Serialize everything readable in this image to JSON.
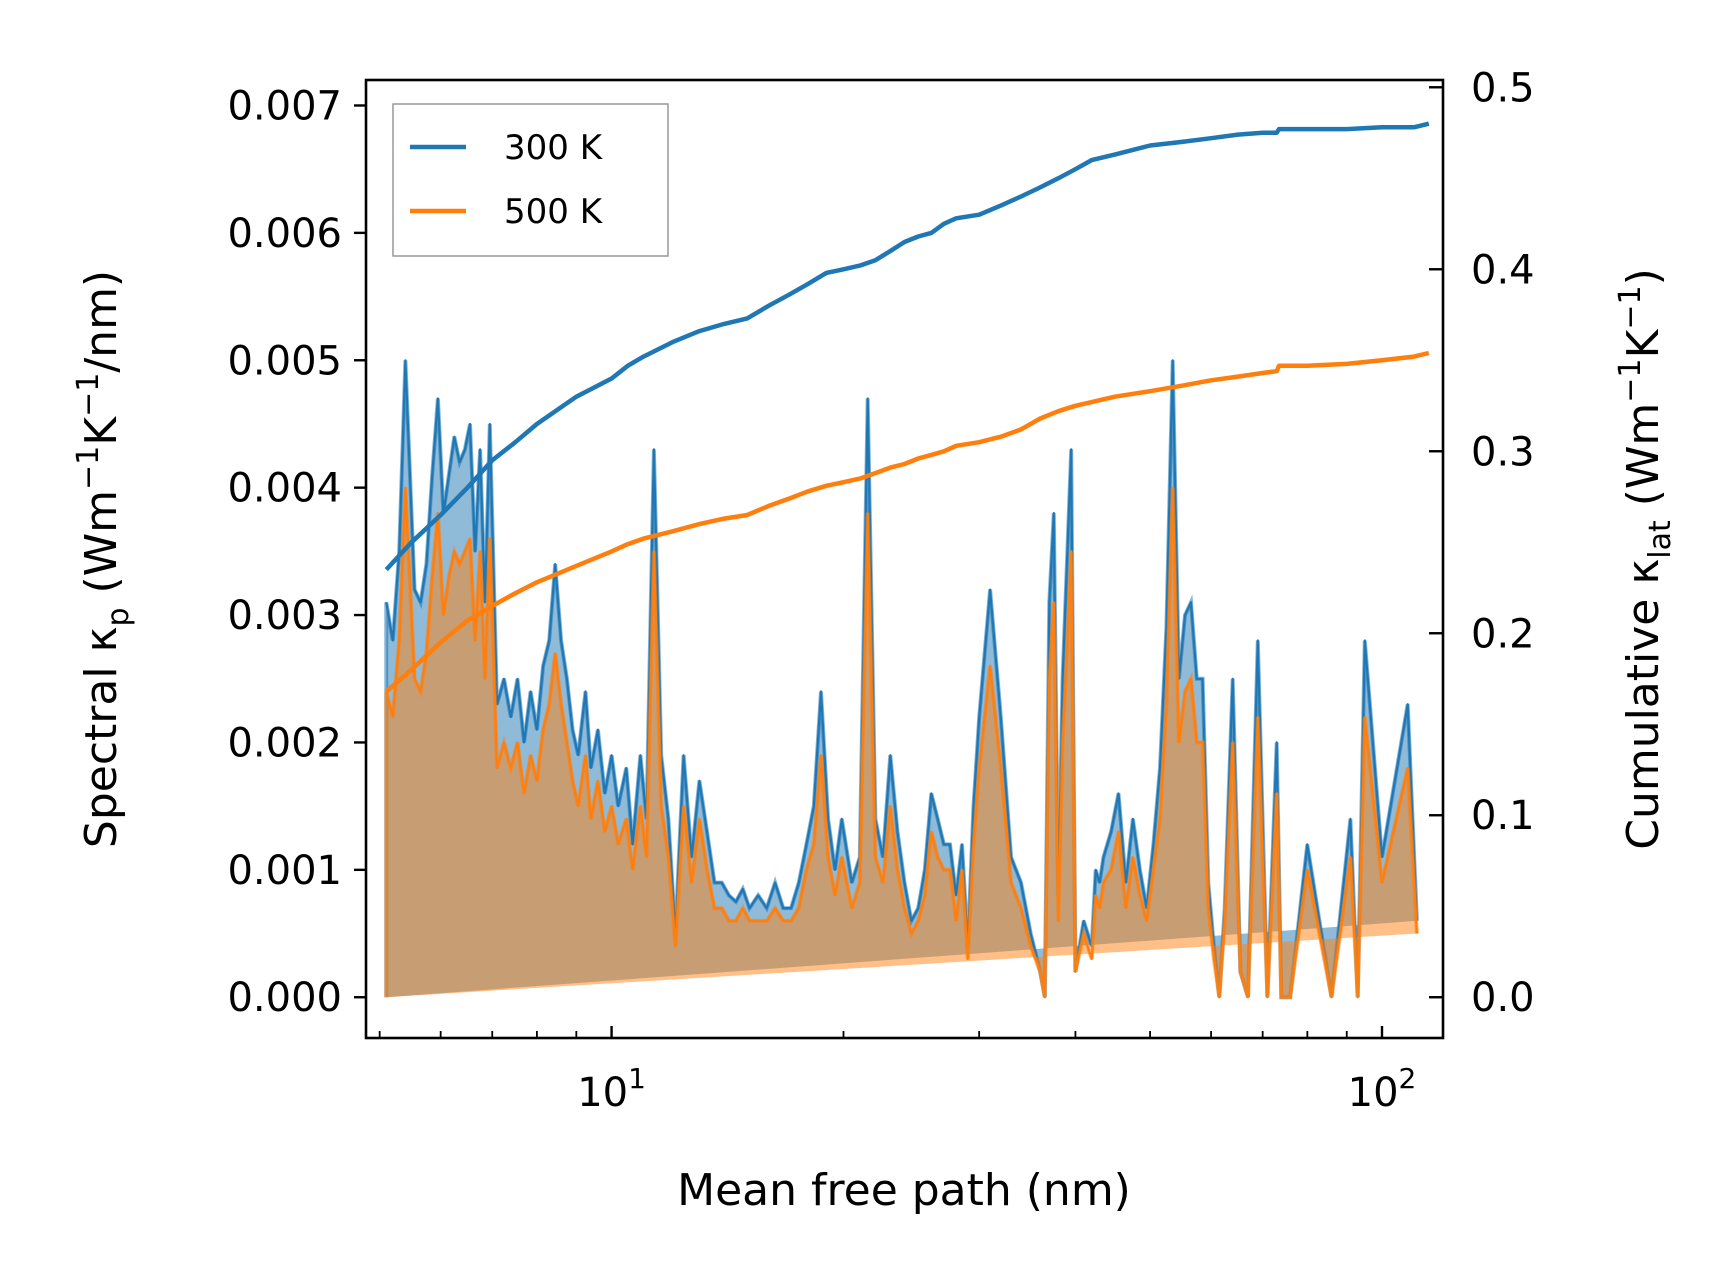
{
  "chart_data": {
    "type": "line",
    "title": "",
    "xlabel": "Mean free path (nm)",
    "ylabel_left": "Spectral κ_p (Wm⁻¹K⁻¹/nm)",
    "ylabel_right": "Cumulative κ_lat (Wm⁻¹K⁻¹)",
    "xscale": "log",
    "xlim": [
      4.8,
      120
    ],
    "ylim_left": [
      -0.00032,
      0.0072
    ],
    "ylim_right": [
      -0.0224,
      0.504
    ],
    "x_tick_labels": [
      {
        "value": 10,
        "base": "10",
        "exp": "1"
      },
      {
        "value": 100,
        "base": "10",
        "exp": "2"
      }
    ],
    "y_left_ticks": [
      "0.000",
      "0.001",
      "0.002",
      "0.003",
      "0.004",
      "0.005",
      "0.006",
      "0.007"
    ],
    "y_right_ticks": [
      "0.0",
      "0.1",
      "0.2",
      "0.3",
      "0.4",
      "0.5"
    ],
    "legend": {
      "position": "top-left",
      "entries": [
        {
          "label": "300 K",
          "color": "#1f77b4"
        },
        {
          "label": "500 K",
          "color": "#ff7f0e"
        }
      ]
    },
    "spectral_x": [
      5.1,
      5.2,
      5.3,
      5.4,
      5.55,
      5.65,
      5.75,
      5.85,
      5.95,
      6.05,
      6.15,
      6.25,
      6.35,
      6.45,
      6.55,
      6.65,
      6.75,
      6.85,
      6.95,
      7.1,
      7.25,
      7.4,
      7.55,
      7.7,
      7.85,
      8.0,
      8.15,
      8.3,
      8.45,
      8.6,
      8.75,
      8.9,
      9.05,
      9.25,
      9.4,
      9.6,
      9.8,
      10.0,
      10.2,
      10.45,
      10.65,
      10.9,
      11.1,
      11.35,
      11.6,
      11.85,
      12.1,
      12.4,
      12.7,
      13.0,
      13.3,
      13.6,
      13.9,
      14.2,
      14.5,
      14.8,
      15.1,
      15.5,
      15.9,
      16.3,
      16.7,
      17.1,
      17.5,
      17.9,
      18.3,
      18.7,
      19.1,
      19.5,
      19.9,
      20.5,
      21.0,
      21.5,
      22.0,
      22.5,
      23.0,
      23.5,
      24.0,
      24.5,
      25.0,
      25.5,
      26.0,
      26.5,
      27.0,
      27.5,
      28.0,
      28.5,
      29.0,
      29.5,
      30.0,
      31.0,
      32.0,
      33.0,
      34.0,
      35.0,
      36.0,
      36.5,
      37.0,
      37.5,
      38.0,
      38.5,
      39.0,
      39.5,
      40.0,
      41.0,
      42.0,
      42.5,
      43.0,
      43.5,
      44.5,
      45.5,
      46.5,
      47.5,
      48.5,
      49.5,
      50.5,
      51.5,
      52.5,
      53.5,
      54.5,
      55.5,
      56.5,
      57.5,
      58.5,
      59.5,
      60.5,
      61.5,
      62.5,
      64.0,
      65.5,
      67.0,
      69.0,
      71.0,
      73.0,
      73.5,
      74.0,
      76.0,
      80.0,
      86.0,
      91.0,
      93.0,
      95.0,
      100.0,
      108.0,
      111.0,
      113.0,
      115.0
    ],
    "series": [
      {
        "name": "300 K",
        "color": "#1f77b4",
        "spectral": [
          0.0031,
          0.0028,
          0.0035,
          0.005,
          0.0032,
          0.0031,
          0.0034,
          0.0041,
          0.0047,
          0.0038,
          0.0041,
          0.0044,
          0.0042,
          0.0043,
          0.0045,
          0.0035,
          0.0043,
          0.0031,
          0.0045,
          0.0023,
          0.0025,
          0.0022,
          0.0025,
          0.002,
          0.0024,
          0.0021,
          0.0026,
          0.0028,
          0.0034,
          0.0028,
          0.0025,
          0.0021,
          0.0019,
          0.0024,
          0.0018,
          0.0021,
          0.0016,
          0.0019,
          0.0015,
          0.0018,
          0.0012,
          0.0019,
          0.0014,
          0.0043,
          0.0019,
          0.0014,
          0.0005,
          0.0019,
          0.0011,
          0.0017,
          0.0013,
          0.0009,
          0.0009,
          0.0008,
          0.00075,
          0.00085,
          0.0007,
          0.0008,
          0.0007,
          0.0009,
          0.0007,
          0.0007,
          0.0009,
          0.0012,
          0.0015,
          0.0024,
          0.0014,
          0.001,
          0.0014,
          0.0009,
          0.0011,
          0.0047,
          0.0014,
          0.0011,
          0.0019,
          0.0013,
          0.0009,
          0.0006,
          0.0007,
          0.001,
          0.0016,
          0.0014,
          0.0012,
          0.0012,
          0.0008,
          0.0012,
          0.0004,
          0.0015,
          0.0022,
          0.0032,
          0.0022,
          0.0011,
          0.0009,
          0.0005,
          0.0002,
          0.0,
          0.0031,
          0.0038,
          0.0008,
          0.0025,
          0.0034,
          0.0043,
          0.0002,
          0.0006,
          0.0004,
          0.001,
          0.0009,
          0.0011,
          0.0013,
          0.0016,
          0.0009,
          0.0014,
          0.001,
          0.0007,
          0.0012,
          0.0018,
          0.0029,
          0.005,
          0.0025,
          0.003,
          0.0031,
          0.0025,
          0.0025,
          0.0009,
          0.0004,
          0.0,
          0.0007,
          0.0025,
          0.0002,
          0.0,
          0.0028,
          0.0,
          0.002,
          0.001,
          0.0,
          0.0,
          0.0012,
          0.0,
          0.0014,
          0.0,
          0.0028,
          0.0011,
          0.0023,
          0.0006
        ],
        "cumulative_x": [
          5.1,
          5.5,
          6.0,
          6.5,
          7.0,
          7.5,
          8.0,
          9.0,
          10.0,
          10.5,
          11.0,
          12.0,
          13.0,
          14.0,
          15.0,
          16.0,
          17.0,
          18.0,
          19.0,
          20.0,
          21.0,
          22.0,
          23.0,
          24.0,
          25.0,
          26.0,
          27.0,
          28.0,
          30.0,
          32.0,
          34.0,
          36.0,
          38.0,
          40.0,
          42.0,
          45.0,
          50.0,
          55.0,
          60.0,
          65.0,
          70.0,
          73.0,
          73.5,
          80.0,
          90.0,
          100.0,
          110.0,
          115.0
        ],
        "cumulative": [
          0.235,
          0.25,
          0.265,
          0.28,
          0.295,
          0.305,
          0.315,
          0.33,
          0.34,
          0.347,
          0.352,
          0.36,
          0.366,
          0.37,
          0.373,
          0.38,
          0.386,
          0.392,
          0.398,
          0.4,
          0.402,
          0.405,
          0.41,
          0.415,
          0.418,
          0.42,
          0.425,
          0.428,
          0.43,
          0.435,
          0.44,
          0.445,
          0.45,
          0.455,
          0.46,
          0.463,
          0.468,
          0.47,
          0.472,
          0.474,
          0.475,
          0.475,
          0.477,
          0.477,
          0.477,
          0.478,
          0.478,
          0.48
        ]
      },
      {
        "name": "500 K",
        "color": "#ff7f0e",
        "spectral": [
          0.0024,
          0.0022,
          0.0028,
          0.004,
          0.0025,
          0.0024,
          0.0027,
          0.0033,
          0.0038,
          0.003,
          0.0033,
          0.0035,
          0.0034,
          0.0035,
          0.0036,
          0.0028,
          0.0035,
          0.0025,
          0.0036,
          0.0018,
          0.002,
          0.0018,
          0.002,
          0.0016,
          0.0019,
          0.0017,
          0.0021,
          0.0023,
          0.0027,
          0.0023,
          0.002,
          0.0017,
          0.0015,
          0.0019,
          0.0014,
          0.0017,
          0.0013,
          0.0015,
          0.0012,
          0.0014,
          0.001,
          0.0015,
          0.0011,
          0.0035,
          0.0015,
          0.0011,
          0.0004,
          0.0015,
          0.0009,
          0.0014,
          0.001,
          0.0007,
          0.0007,
          0.0006,
          0.0006,
          0.0007,
          0.0006,
          0.0006,
          0.0006,
          0.0007,
          0.0006,
          0.0006,
          0.0007,
          0.001,
          0.0012,
          0.0019,
          0.0011,
          0.0008,
          0.0011,
          0.0007,
          0.0009,
          0.0038,
          0.0011,
          0.0009,
          0.0015,
          0.001,
          0.0007,
          0.0005,
          0.0006,
          0.0008,
          0.0013,
          0.0011,
          0.001,
          0.001,
          0.0006,
          0.001,
          0.0003,
          0.0012,
          0.0018,
          0.0026,
          0.0018,
          0.0009,
          0.0007,
          0.0004,
          0.0002,
          0.0,
          0.0025,
          0.0031,
          0.0006,
          0.002,
          0.0027,
          0.0035,
          0.0002,
          0.0005,
          0.0003,
          0.0008,
          0.0007,
          0.0009,
          0.001,
          0.0013,
          0.0007,
          0.0011,
          0.0008,
          0.0006,
          0.001,
          0.0014,
          0.0023,
          0.004,
          0.002,
          0.0024,
          0.0025,
          0.002,
          0.002,
          0.0007,
          0.0003,
          0.0,
          0.0006,
          0.002,
          0.0002,
          0.0,
          0.0022,
          0.0,
          0.0016,
          0.0008,
          0.0,
          0.0,
          0.001,
          0.0,
          0.0011,
          0.0,
          0.0022,
          0.0009,
          0.0018,
          0.0005
        ],
        "cumulative_x": [
          5.1,
          5.5,
          6.0,
          6.5,
          7.0,
          7.5,
          8.0,
          9.0,
          10.0,
          10.5,
          11.0,
          12.0,
          13.0,
          14.0,
          15.0,
          16.0,
          17.0,
          18.0,
          19.0,
          20.0,
          21.0,
          22.0,
          23.0,
          24.0,
          25.0,
          26.0,
          27.0,
          28.0,
          30.0,
          32.0,
          34.0,
          36.0,
          38.0,
          40.0,
          42.0,
          45.0,
          50.0,
          55.0,
          60.0,
          65.0,
          70.0,
          73.0,
          73.5,
          80.0,
          90.0,
          100.0,
          110.0,
          115.0
        ],
        "cumulative": [
          0.168,
          0.18,
          0.195,
          0.207,
          0.215,
          0.222,
          0.228,
          0.237,
          0.245,
          0.249,
          0.252,
          0.256,
          0.26,
          0.263,
          0.265,
          0.27,
          0.274,
          0.278,
          0.281,
          0.283,
          0.285,
          0.288,
          0.291,
          0.293,
          0.296,
          0.298,
          0.3,
          0.303,
          0.305,
          0.308,
          0.312,
          0.318,
          0.322,
          0.325,
          0.327,
          0.33,
          0.333,
          0.336,
          0.339,
          0.341,
          0.343,
          0.344,
          0.347,
          0.347,
          0.348,
          0.35,
          0.352,
          0.354
        ]
      }
    ]
  }
}
